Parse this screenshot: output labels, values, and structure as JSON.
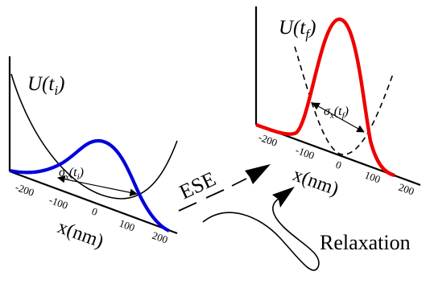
{
  "left_panel": {
    "potential_label": "U(t",
    "potential_sub": "i",
    "width_label": "σ",
    "width_label_sub": "x",
    "width_label_arg": "(t",
    "width_label_arg_sub": "i",
    "x_axis_label": "x(nm)",
    "tick_labels": [
      "-200",
      "-100",
      "0",
      "100",
      "200"
    ]
  },
  "right_panel": {
    "potential_label": "U(t",
    "potential_sub": "f",
    "width_label": "σ",
    "width_label_sub": "x",
    "width_label_arg": "(t",
    "width_label_arg_sub": "f",
    "x_axis_label": "x(nm)",
    "tick_labels": [
      "-200",
      "-100",
      "0",
      "100",
      "200"
    ]
  },
  "transition": {
    "ese_label": "ESE",
    "relaxation_label": "Relaxation"
  },
  "colors": {
    "initial_wavefunction": "#0000dd",
    "final_wavefunction": "#ee0000",
    "potential": "#000000"
  }
}
